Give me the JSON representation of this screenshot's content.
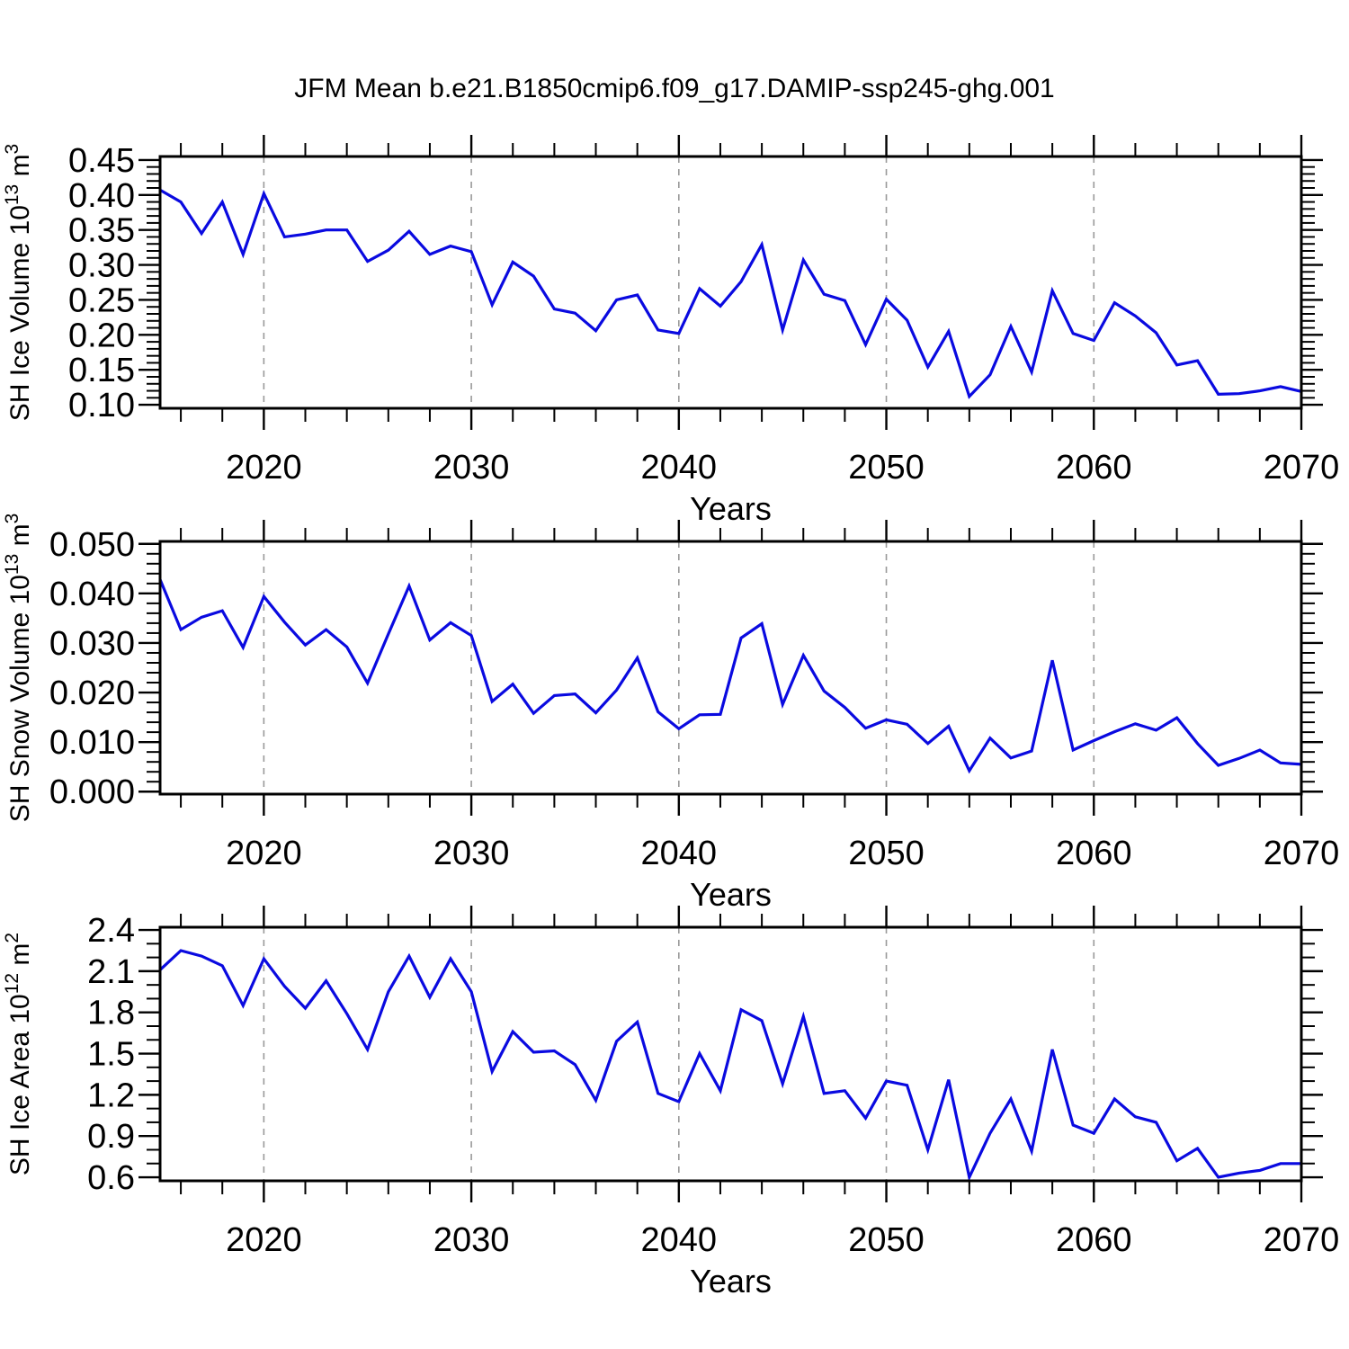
{
  "title": "JFM Mean b.e21.B1850cmip6.f09_g17.DAMIP-ssp245-ghg.001",
  "colors": {
    "line": "#0a0ae0",
    "grid": "#999999",
    "axis": "#000000"
  },
  "chart_data": [
    {
      "type": "line",
      "title": "",
      "ylabel": "SH Ice Volume 10^13 m^3",
      "ylabel_segments": [
        {
          "t": "SH Ice Volume 10",
          "sup": false
        },
        {
          "t": "13",
          "sup": true
        },
        {
          "t": " m",
          "sup": false
        },
        {
          "t": "3",
          "sup": true
        }
      ],
      "xlabel": "Years",
      "x": [
        2015,
        2016,
        2017,
        2018,
        2019,
        2020,
        2021,
        2022,
        2023,
        2024,
        2025,
        2026,
        2027,
        2028,
        2029,
        2030,
        2031,
        2032,
        2033,
        2034,
        2035,
        2036,
        2037,
        2038,
        2039,
        2040,
        2041,
        2042,
        2043,
        2044,
        2045,
        2046,
        2047,
        2048,
        2049,
        2050,
        2051,
        2052,
        2053,
        2054,
        2055,
        2056,
        2057,
        2058,
        2059,
        2060,
        2061,
        2062,
        2063,
        2064,
        2065,
        2066,
        2067,
        2068,
        2069,
        2070
      ],
      "values": [
        0.407,
        0.39,
        0.345,
        0.39,
        0.315,
        0.402,
        0.34,
        0.344,
        0.35,
        0.35,
        0.305,
        0.321,
        0.348,
        0.315,
        0.327,
        0.319,
        0.243,
        0.304,
        0.284,
        0.237,
        0.231,
        0.206,
        0.25,
        0.257,
        0.207,
        0.202,
        0.266,
        0.241,
        0.276,
        0.329,
        0.207,
        0.307,
        0.258,
        0.249,
        0.186,
        0.251,
        0.221,
        0.154,
        0.205,
        0.112,
        0.143,
        0.212,
        0.147,
        0.263,
        0.202,
        0.192,
        0.246,
        0.227,
        0.203,
        0.157,
        0.163,
        0.115,
        0.116,
        0.12,
        0.126,
        0.119
      ],
      "xlim": [
        2015,
        2070
      ],
      "ylim": [
        0.095,
        0.455
      ],
      "yticks": [
        0.1,
        0.15,
        0.2,
        0.25,
        0.3,
        0.35,
        0.4,
        0.45
      ],
      "ytick_labels": [
        "0.10",
        "0.15",
        "0.20",
        "0.25",
        "0.30",
        "0.35",
        "0.40",
        "0.45"
      ],
      "yminor_step": 0.01,
      "xticks": [
        2020,
        2030,
        2040,
        2050,
        2060,
        2070
      ],
      "xtick_labels": [
        "2020",
        "2030",
        "2040",
        "2050",
        "2060",
        "2070"
      ],
      "xminor_step": 2,
      "grid_x": [
        2020,
        2030,
        2040,
        2050,
        2060
      ],
      "grid": "vertical-dashed",
      "legend": "none"
    },
    {
      "type": "line",
      "title": "",
      "ylabel": "SH Snow Volume 10^13 m^3",
      "ylabel_segments": [
        {
          "t": "SH Snow Volume 10",
          "sup": false
        },
        {
          "t": "13",
          "sup": true
        },
        {
          "t": " m",
          "sup": false
        },
        {
          "t": "3",
          "sup": true
        }
      ],
      "xlabel": "Years",
      "x": [
        2015,
        2016,
        2017,
        2018,
        2019,
        2020,
        2021,
        2022,
        2023,
        2024,
        2025,
        2026,
        2027,
        2028,
        2029,
        2030,
        2031,
        2032,
        2033,
        2034,
        2035,
        2036,
        2037,
        2038,
        2039,
        2040,
        2041,
        2042,
        2043,
        2044,
        2045,
        2046,
        2047,
        2048,
        2049,
        2050,
        2051,
        2052,
        2053,
        2054,
        2055,
        2056,
        2057,
        2058,
        2059,
        2060,
        2061,
        2062,
        2063,
        2064,
        2065,
        2066,
        2067,
        2068,
        2069,
        2070
      ],
      "values": [
        0.0428,
        0.0327,
        0.0352,
        0.0365,
        0.0291,
        0.0394,
        0.0342,
        0.0296,
        0.0327,
        0.0292,
        0.0219,
        0.0318,
        0.0415,
        0.0306,
        0.0341,
        0.0315,
        0.0182,
        0.0217,
        0.0158,
        0.0194,
        0.0197,
        0.0159,
        0.0205,
        0.027,
        0.0161,
        0.0127,
        0.0155,
        0.0156,
        0.031,
        0.0339,
        0.0176,
        0.0275,
        0.0203,
        0.017,
        0.0128,
        0.0145,
        0.0136,
        0.0097,
        0.0132,
        0.0042,
        0.0108,
        0.0068,
        0.0082,
        0.0265,
        0.0084,
        0.0103,
        0.0121,
        0.0137,
        0.0124,
        0.0149,
        0.0097,
        0.0053,
        0.0067,
        0.0084,
        0.0058,
        0.0055
      ],
      "xlim": [
        2015,
        2070
      ],
      "ylim": [
        -0.0005,
        0.0505
      ],
      "yticks": [
        0.0,
        0.01,
        0.02,
        0.03,
        0.04,
        0.05
      ],
      "ytick_labels": [
        "0.000",
        "0.010",
        "0.020",
        "0.030",
        "0.040",
        "0.050"
      ],
      "yminor_step": 0.002,
      "xticks": [
        2020,
        2030,
        2040,
        2050,
        2060,
        2070
      ],
      "xtick_labels": [
        "2020",
        "2030",
        "2040",
        "2050",
        "2060",
        "2070"
      ],
      "xminor_step": 2,
      "grid_x": [
        2020,
        2030,
        2040,
        2050,
        2060
      ],
      "grid": "vertical-dashed",
      "legend": "none"
    },
    {
      "type": "line",
      "title": "",
      "ylabel": "SH Ice Area 10^12 m^2",
      "ylabel_segments": [
        {
          "t": "SH Ice Area 10",
          "sup": false
        },
        {
          "t": "12",
          "sup": true
        },
        {
          "t": " m",
          "sup": false
        },
        {
          "t": "2",
          "sup": true
        }
      ],
      "xlabel": "Years",
      "x": [
        2015,
        2016,
        2017,
        2018,
        2019,
        2020,
        2021,
        2022,
        2023,
        2024,
        2025,
        2026,
        2027,
        2028,
        2029,
        2030,
        2031,
        2032,
        2033,
        2034,
        2035,
        2036,
        2037,
        2038,
        2039,
        2040,
        2041,
        2042,
        2043,
        2044,
        2045,
        2046,
        2047,
        2048,
        2049,
        2050,
        2051,
        2052,
        2053,
        2054,
        2055,
        2056,
        2057,
        2058,
        2059,
        2060,
        2061,
        2062,
        2063,
        2064,
        2065,
        2066,
        2067,
        2068,
        2069,
        2070
      ],
      "values": [
        2.11,
        2.25,
        2.21,
        2.14,
        1.85,
        2.19,
        1.99,
        1.83,
        2.03,
        1.79,
        1.53,
        1.95,
        2.21,
        1.91,
        2.19,
        1.95,
        1.37,
        1.66,
        1.51,
        1.52,
        1.42,
        1.16,
        1.59,
        1.73,
        1.21,
        1.15,
        1.5,
        1.23,
        1.82,
        1.74,
        1.28,
        1.77,
        1.21,
        1.23,
        1.03,
        1.3,
        1.27,
        0.8,
        1.31,
        0.6,
        0.92,
        1.17,
        0.79,
        1.53,
        0.98,
        0.92,
        1.17,
        1.04,
        1.0,
        0.72,
        0.81,
        0.6,
        0.63,
        0.65,
        0.7,
        0.7
      ],
      "xlim": [
        2015,
        2070
      ],
      "ylim": [
        0.574,
        2.42
      ],
      "yticks": [
        0.6,
        0.9,
        1.2,
        1.5,
        1.8,
        2.1,
        2.4
      ],
      "ytick_labels": [
        "0.6",
        "0.9",
        "1.2",
        "1.5",
        "1.8",
        "2.1",
        "2.4"
      ],
      "yminor_step": 0.1,
      "xticks": [
        2020,
        2030,
        2040,
        2050,
        2060,
        2070
      ],
      "xtick_labels": [
        "2020",
        "2030",
        "2040",
        "2050",
        "2060",
        "2070"
      ],
      "xminor_step": 2,
      "grid_x": [
        2020,
        2030,
        2040,
        2050,
        2060
      ],
      "grid": "vertical-dashed",
      "legend": "none"
    }
  ]
}
